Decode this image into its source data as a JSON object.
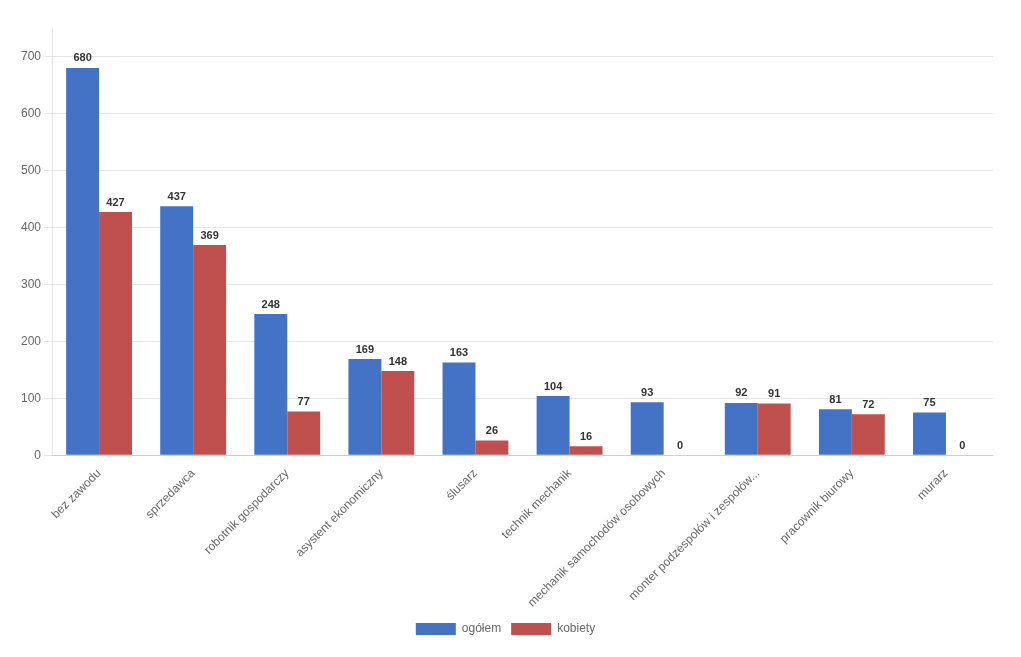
{
  "chart_data": {
    "type": "bar",
    "categories": [
      "bez zawodu",
      "sprzedawca",
      "robotnik gospodarczy",
      "asystent ekonomiczny",
      "ślusarz",
      "technik mechanik",
      "mechanik samochodów osobowych",
      "monter podzespołów i zespołów...",
      "pracownik biurowy",
      "murarz"
    ],
    "series": [
      {
        "name": "ogółem",
        "color": "#4472C4",
        "values": [
          680,
          437,
          248,
          169,
          163,
          104,
          93,
          92,
          81,
          75
        ]
      },
      {
        "name": "kobiety",
        "color": "#C0504D",
        "values": [
          427,
          369,
          77,
          148,
          26,
          16,
          0,
          91,
          72,
          0
        ]
      }
    ],
    "ylim": [
      0,
      750
    ],
    "yticks": [
      0,
      100,
      200,
      300,
      400,
      500,
      600,
      700
    ],
    "grid": true,
    "data_labels": true,
    "legend": "bottom"
  }
}
